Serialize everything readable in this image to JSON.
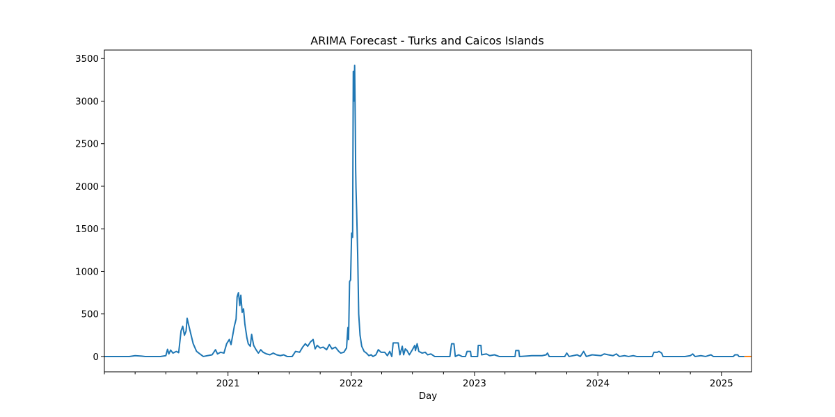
{
  "chart_data": {
    "type": "line",
    "title": "ARIMA Forecast - Turks and Caicos Islands",
    "xlabel": "Day",
    "ylabel": "",
    "x_start": "2020-01-01",
    "x_end": "2025-03-31",
    "ylim": [
      -180,
      3600
    ],
    "yticks": [
      0,
      500,
      1000,
      1500,
      2000,
      2500,
      3000,
      3500
    ],
    "xticks": [
      {
        "date": "2021-01-01",
        "label": "2021"
      },
      {
        "date": "2022-01-01",
        "label": "2022"
      },
      {
        "date": "2023-01-01",
        "label": "2023"
      },
      {
        "date": "2024-01-01",
        "label": "2024"
      },
      {
        "date": "2025-01-01",
        "label": "2025"
      }
    ],
    "grid": false,
    "series": [
      {
        "color": "#1f77b4",
        "points": [
          [
            "2020-01-01",
            0
          ],
          [
            "2020-03-15",
            0
          ],
          [
            "2020-04-01",
            10
          ],
          [
            "2020-04-20",
            5
          ],
          [
            "2020-05-01",
            0
          ],
          [
            "2020-06-15",
            0
          ],
          [
            "2020-07-01",
            10
          ],
          [
            "2020-07-06",
            85
          ],
          [
            "2020-07-10",
            30
          ],
          [
            "2020-07-15",
            75
          ],
          [
            "2020-07-22",
            40
          ],
          [
            "2020-08-01",
            60
          ],
          [
            "2020-08-08",
            45
          ],
          [
            "2020-08-15",
            300
          ],
          [
            "2020-08-20",
            355
          ],
          [
            "2020-08-25",
            250
          ],
          [
            "2020-08-30",
            300
          ],
          [
            "2020-09-02",
            450
          ],
          [
            "2020-09-06",
            380
          ],
          [
            "2020-09-12",
            280
          ],
          [
            "2020-09-20",
            150
          ],
          [
            "2020-09-30",
            60
          ],
          [
            "2020-10-10",
            30
          ],
          [
            "2020-10-20",
            0
          ],
          [
            "2020-11-01",
            10
          ],
          [
            "2020-11-15",
            20
          ],
          [
            "2020-11-25",
            80
          ],
          [
            "2020-12-01",
            30
          ],
          [
            "2020-12-10",
            50
          ],
          [
            "2020-12-20",
            40
          ],
          [
            "2020-12-28",
            150
          ],
          [
            "2021-01-05",
            200
          ],
          [
            "2021-01-10",
            140
          ],
          [
            "2021-01-15",
            250
          ],
          [
            "2021-01-20",
            360
          ],
          [
            "2021-01-25",
            440
          ],
          [
            "2021-01-28",
            700
          ],
          [
            "2021-02-01",
            750
          ],
          [
            "2021-02-05",
            600
          ],
          [
            "2021-02-08",
            720
          ],
          [
            "2021-02-12",
            520
          ],
          [
            "2021-02-16",
            560
          ],
          [
            "2021-02-20",
            380
          ],
          [
            "2021-02-26",
            220
          ],
          [
            "2021-03-02",
            150
          ],
          [
            "2021-03-08",
            120
          ],
          [
            "2021-03-12",
            260
          ],
          [
            "2021-03-18",
            130
          ],
          [
            "2021-03-25",
            80
          ],
          [
            "2021-04-01",
            40
          ],
          [
            "2021-04-08",
            80
          ],
          [
            "2021-04-15",
            50
          ],
          [
            "2021-04-25",
            30
          ],
          [
            "2021-05-05",
            20
          ],
          [
            "2021-05-15",
            40
          ],
          [
            "2021-05-25",
            20
          ],
          [
            "2021-06-05",
            10
          ],
          [
            "2021-06-15",
            20
          ],
          [
            "2021-06-25",
            0
          ],
          [
            "2021-07-10",
            0
          ],
          [
            "2021-07-20",
            60
          ],
          [
            "2021-08-01",
            50
          ],
          [
            "2021-08-10",
            110
          ],
          [
            "2021-08-18",
            150
          ],
          [
            "2021-08-25",
            120
          ],
          [
            "2021-09-02",
            170
          ],
          [
            "2021-09-10",
            200
          ],
          [
            "2021-09-16",
            90
          ],
          [
            "2021-09-22",
            130
          ],
          [
            "2021-10-01",
            100
          ],
          [
            "2021-10-10",
            110
          ],
          [
            "2021-10-20",
            80
          ],
          [
            "2021-10-28",
            140
          ],
          [
            "2021-11-05",
            90
          ],
          [
            "2021-11-15",
            110
          ],
          [
            "2021-11-25",
            60
          ],
          [
            "2021-12-01",
            40
          ],
          [
            "2021-12-10",
            50
          ],
          [
            "2021-12-18",
            100
          ],
          [
            "2021-12-22",
            340
          ],
          [
            "2021-12-24",
            200
          ],
          [
            "2021-12-27",
            880
          ],
          [
            "2021-12-30",
            900
          ],
          [
            "2022-01-02",
            1450
          ],
          [
            "2022-01-05",
            1400
          ],
          [
            "2022-01-07",
            3350
          ],
          [
            "2022-01-09",
            3000
          ],
          [
            "2022-01-11",
            3420
          ],
          [
            "2022-01-13",
            2700
          ],
          [
            "2022-01-14",
            2200
          ],
          [
            "2022-01-15",
            1980
          ],
          [
            "2022-01-17",
            1700
          ],
          [
            "2022-01-20",
            1200
          ],
          [
            "2022-01-23",
            500
          ],
          [
            "2022-01-27",
            250
          ],
          [
            "2022-02-01",
            120
          ],
          [
            "2022-02-08",
            60
          ],
          [
            "2022-02-15",
            40
          ],
          [
            "2022-02-22",
            10
          ],
          [
            "2022-03-01",
            20
          ],
          [
            "2022-03-06",
            0
          ],
          [
            "2022-03-15",
            20
          ],
          [
            "2022-03-22",
            80
          ],
          [
            "2022-03-30",
            50
          ],
          [
            "2022-04-10",
            50
          ],
          [
            "2022-04-18",
            10
          ],
          [
            "2022-04-25",
            60
          ],
          [
            "2022-05-01",
            0
          ],
          [
            "2022-05-05",
            160
          ],
          [
            "2022-05-20",
            160
          ],
          [
            "2022-05-25",
            20
          ],
          [
            "2022-06-01",
            120
          ],
          [
            "2022-06-05",
            20
          ],
          [
            "2022-06-10",
            90
          ],
          [
            "2022-06-15",
            70
          ],
          [
            "2022-06-22",
            20
          ],
          [
            "2022-07-01",
            80
          ],
          [
            "2022-07-08",
            130
          ],
          [
            "2022-07-10",
            70
          ],
          [
            "2022-07-15",
            150
          ],
          [
            "2022-07-20",
            60
          ],
          [
            "2022-07-30",
            40
          ],
          [
            "2022-08-08",
            50
          ],
          [
            "2022-08-15",
            20
          ],
          [
            "2022-08-25",
            30
          ],
          [
            "2022-09-05",
            0
          ],
          [
            "2022-10-20",
            0
          ],
          [
            "2022-10-25",
            150
          ],
          [
            "2022-11-01",
            150
          ],
          [
            "2022-11-05",
            0
          ],
          [
            "2022-11-15",
            20
          ],
          [
            "2022-11-25",
            0
          ],
          [
            "2022-12-05",
            0
          ],
          [
            "2022-12-10",
            60
          ],
          [
            "2022-12-20",
            60
          ],
          [
            "2022-12-22",
            0
          ],
          [
            "2023-01-10",
            0
          ],
          [
            "2023-01-12",
            130
          ],
          [
            "2023-01-20",
            130
          ],
          [
            "2023-01-22",
            20
          ],
          [
            "2023-02-05",
            30
          ],
          [
            "2023-02-15",
            10
          ],
          [
            "2023-03-01",
            20
          ],
          [
            "2023-03-15",
            0
          ],
          [
            "2023-05-01",
            0
          ],
          [
            "2023-05-03",
            70
          ],
          [
            "2023-05-12",
            70
          ],
          [
            "2023-05-14",
            0
          ],
          [
            "2023-06-20",
            10
          ],
          [
            "2023-07-20",
            10
          ],
          [
            "2023-08-01",
            20
          ],
          [
            "2023-08-05",
            40
          ],
          [
            "2023-08-10",
            0
          ],
          [
            "2023-09-25",
            0
          ],
          [
            "2023-10-01",
            40
          ],
          [
            "2023-10-08",
            0
          ],
          [
            "2023-11-01",
            20
          ],
          [
            "2023-11-10",
            0
          ],
          [
            "2023-11-20",
            60
          ],
          [
            "2023-11-28",
            0
          ],
          [
            "2023-12-15",
            20
          ],
          [
            "2024-01-10",
            10
          ],
          [
            "2024-01-20",
            30
          ],
          [
            "2024-02-01",
            20
          ],
          [
            "2024-02-15",
            10
          ],
          [
            "2024-02-25",
            30
          ],
          [
            "2024-03-05",
            0
          ],
          [
            "2024-03-20",
            10
          ],
          [
            "2024-04-01",
            0
          ],
          [
            "2024-04-15",
            10
          ],
          [
            "2024-04-25",
            0
          ],
          [
            "2024-06-10",
            0
          ],
          [
            "2024-06-15",
            50
          ],
          [
            "2024-06-25",
            50
          ],
          [
            "2024-06-30",
            60
          ],
          [
            "2024-07-08",
            40
          ],
          [
            "2024-07-12",
            0
          ],
          [
            "2024-09-15",
            0
          ],
          [
            "2024-10-01",
            10
          ],
          [
            "2024-10-08",
            30
          ],
          [
            "2024-10-15",
            0
          ],
          [
            "2024-11-01",
            10
          ],
          [
            "2024-11-15",
            0
          ],
          [
            "2024-12-01",
            20
          ],
          [
            "2024-12-08",
            0
          ],
          [
            "2025-02-05",
            0
          ],
          [
            "2025-02-10",
            20
          ],
          [
            "2025-02-18",
            20
          ],
          [
            "2025-02-22",
            0
          ],
          [
            "2025-03-10",
            0
          ]
        ]
      },
      {
        "color": "#ff7f0e",
        "points": [
          [
            "2025-03-10",
            0
          ],
          [
            "2025-03-31",
            0
          ]
        ]
      }
    ]
  }
}
